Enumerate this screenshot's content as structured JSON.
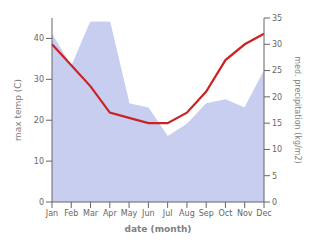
{
  "chart_data": {
    "type": "combo",
    "xlabel": "date (month)",
    "ylabel": "max temp (C)",
    "y2label": "med. precipitation (kg/m2)",
    "categories": [
      "Jan",
      "Feb",
      "Mar",
      "Apr",
      "May",
      "Jun",
      "Jul",
      "Aug",
      "Sep",
      "Oct",
      "Nov",
      "Dec"
    ],
    "series": [
      {
        "type": "area",
        "color": "#c8cef0",
        "values": [
          41,
          33,
          44,
          44,
          24,
          23,
          16,
          19,
          24,
          25,
          23,
          32
        ]
      },
      {
        "type": "line",
        "color": "#cc2222",
        "axis": "y2",
        "values": [
          30,
          26,
          22,
          17,
          16,
          15,
          15,
          17,
          21,
          27,
          30,
          32
        ]
      }
    ],
    "ylim": [
      0,
      45
    ],
    "yticks": [
      0,
      10,
      20,
      30,
      40
    ],
    "y2lim": [
      0,
      35
    ],
    "y2ticks": [
      0,
      5,
      10,
      15,
      20,
      25,
      30,
      35
    ],
    "grid": false
  }
}
